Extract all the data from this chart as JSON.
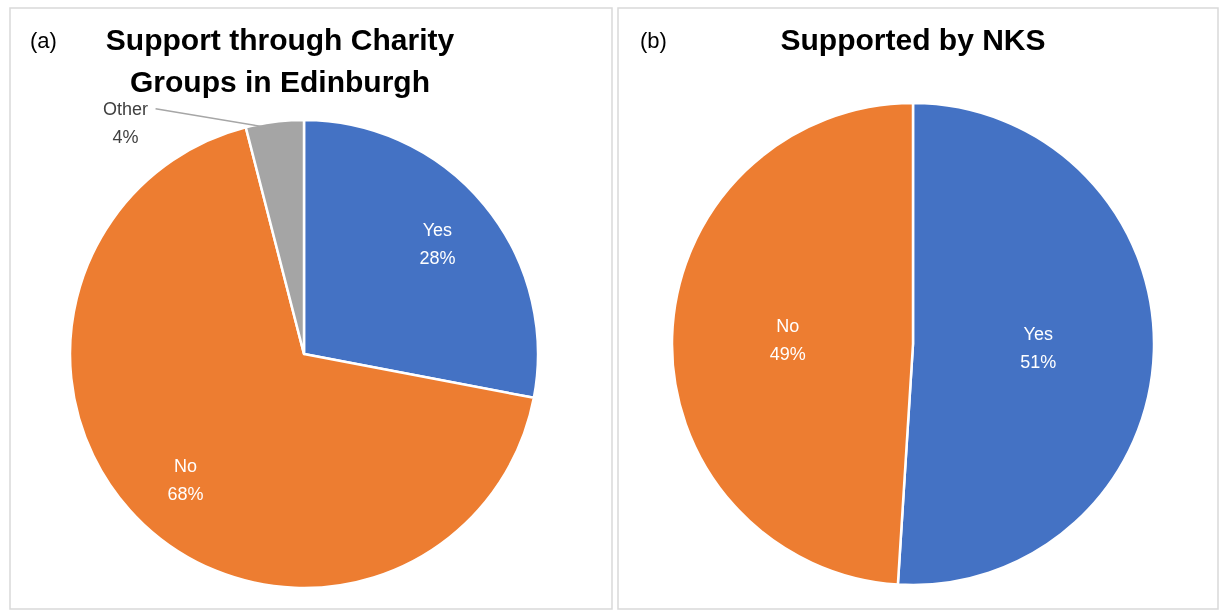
{
  "chart_data": [
    {
      "type": "pie",
      "title": "Support through Charity Groups in Edinburgh",
      "annotations": [
        "(a)"
      ],
      "categories": [
        "Yes",
        "No",
        "Other"
      ],
      "values": [
        28,
        68,
        4
      ],
      "value_labels": [
        "28%",
        "68%",
        "4%"
      ],
      "colors": [
        "#4472c4",
        "#ed7d31",
        "#a5a5a5"
      ]
    },
    {
      "type": "pie",
      "title": "Supported by NKS",
      "annotations": [
        "(b)"
      ],
      "categories": [
        "Yes",
        "No"
      ],
      "values": [
        51,
        49
      ],
      "value_labels": [
        "51%",
        "49%"
      ],
      "colors": [
        "#4472c4",
        "#ed7d31"
      ]
    }
  ]
}
